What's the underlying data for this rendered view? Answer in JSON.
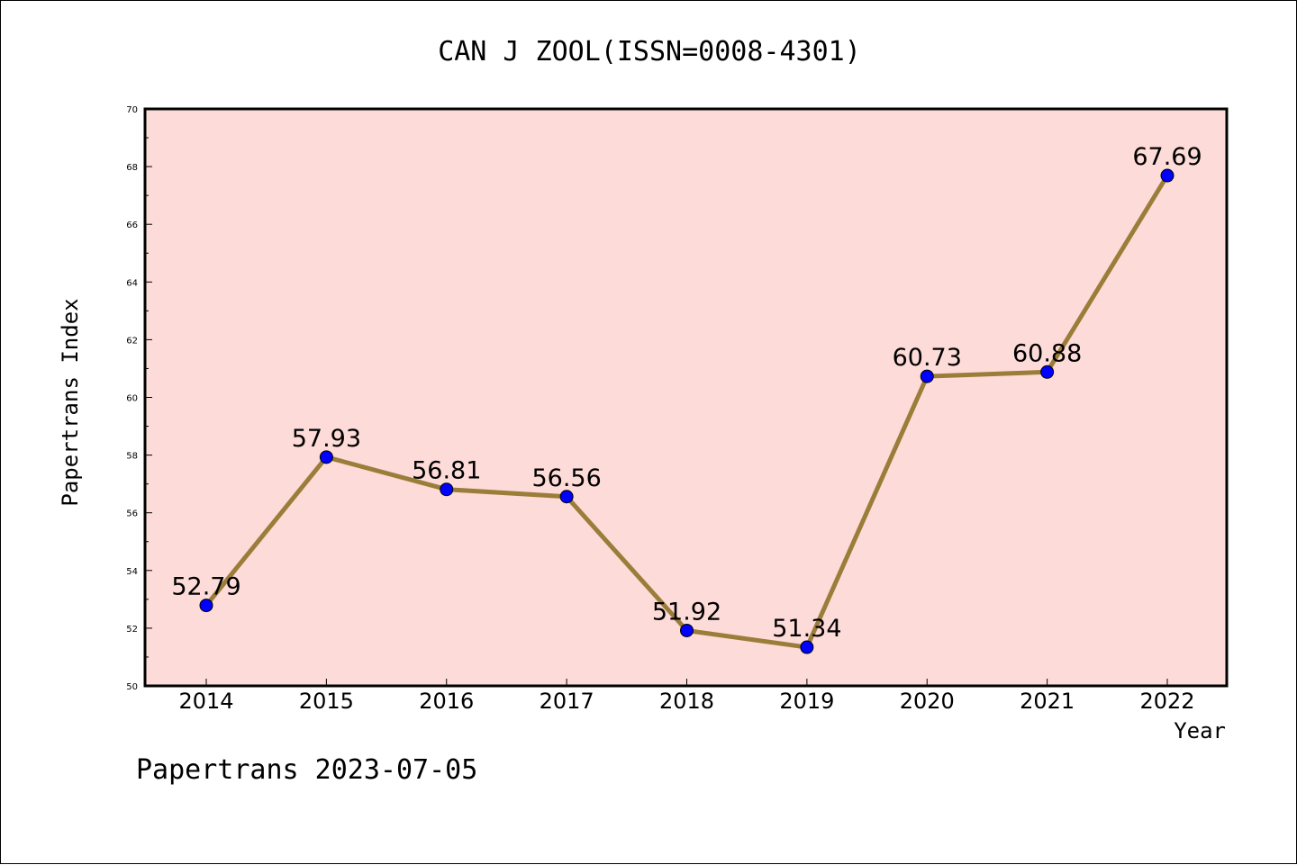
{
  "chart_data": {
    "type": "line",
    "title": "CAN J ZOOL(ISSN=0008-4301)",
    "xlabel": "Year",
    "ylabel": "Papertrans Index",
    "x": [
      "2014",
      "2015",
      "2016",
      "2017",
      "2018",
      "2019",
      "2020",
      "2021",
      "2022"
    ],
    "series": [
      {
        "values": [
          52.79,
          57.93,
          56.81,
          56.56,
          51.92,
          51.34,
          60.73,
          60.88,
          67.69
        ]
      }
    ],
    "data_labels": [
      "52.79",
      "57.93",
      "56.81",
      "56.56",
      "51.92",
      "51.34",
      "60.73",
      "60.88",
      "67.69"
    ],
    "ylim": [
      50,
      70
    ],
    "yticks": [
      50,
      52,
      54,
      56,
      58,
      60,
      62,
      64,
      66,
      68,
      70
    ],
    "ytick_labels": [
      "50",
      "52",
      "54",
      "56",
      "58",
      "60",
      "62",
      "64",
      "66",
      "68",
      "70"
    ],
    "grid": false,
    "legend": "none",
    "colors": {
      "plot_background": "#fddbd8",
      "line": "#9b7d3a",
      "marker": "#0000ff",
      "axes": "#000000"
    }
  },
  "footer": "Papertrans 2023-07-05"
}
